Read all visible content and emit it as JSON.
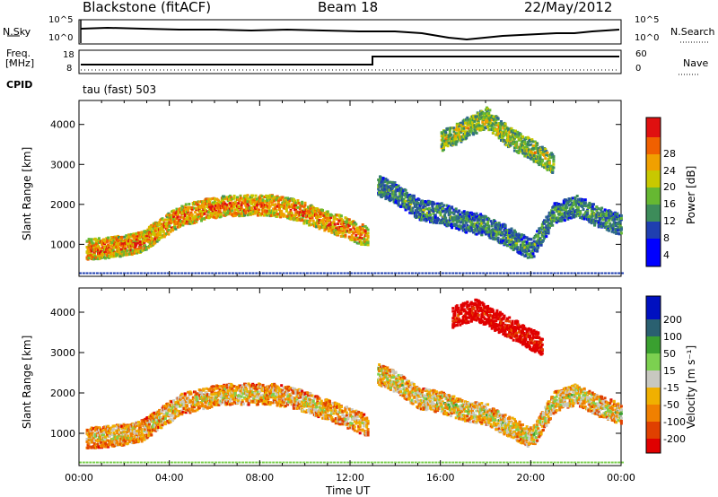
{
  "header": {
    "station": "Blackstone (fitACF)",
    "beam": "Beam 18",
    "date": "22/May/2012"
  },
  "top_panels": {
    "nsky_label": "N.Sky",
    "nsky_ticks": [
      "10^5",
      "10^0"
    ],
    "nsearch_label": "N.Search",
    "nsearch_ticks": [
      "10^5",
      "10^0"
    ],
    "freq_label": "Freq.",
    "freq_unit": "[MHz]",
    "freq_ticks": [
      "18",
      "8"
    ],
    "nave_label": "Nave",
    "nave_ticks": [
      "60",
      "0"
    ],
    "cpid_label": "CPID",
    "cpid_value": "tau (fast) 503"
  },
  "chart_data": [
    {
      "type": "heatmap",
      "name": "power-panel",
      "ylabel": "Slant Range [km]",
      "yticks": [
        1000,
        2000,
        3000,
        4000
      ],
      "ylim": [
        200,
        4600
      ],
      "xlim_hours": [
        0,
        24
      ],
      "colorbar_label": "Power [dB]",
      "colorbar_ticks": [
        "28",
        "24",
        "20",
        "16",
        "12",
        "8",
        "4"
      ],
      "colormap": [
        "#0000ff",
        "#1f3fb0",
        "#2f6a8c",
        "#3d8c5a",
        "#66b832",
        "#c8c800",
        "#f0a000",
        "#f06000",
        "#e01010"
      ],
      "bands": [
        {
          "t": [
            0.3,
            1.2,
            2.0,
            2.8,
            3.5,
            4.5,
            5.5,
            6.5,
            7.5,
            8.5,
            9.5,
            10.5,
            11.5,
            12.8
          ],
          "r": [
            900,
            950,
            1000,
            1100,
            1400,
            1750,
            1900,
            2000,
            2000,
            2000,
            1900,
            1700,
            1500,
            1200
          ],
          "level": 0.8
        },
        {
          "t": [
            13.2,
            14.0,
            15.0,
            16.0,
            17.0,
            18.0,
            19.0,
            20.0,
            21.0,
            22.0,
            23.0,
            24.0
          ],
          "r": [
            2500,
            2300,
            1900,
            1800,
            1600,
            1500,
            1200,
            900,
            1800,
            2000,
            1700,
            1500
          ],
          "level": 0.4
        },
        {
          "t": [
            16.0,
            17.0,
            18.0,
            19.0,
            20.0,
            21.0
          ],
          "r": [
            3600,
            3900,
            4200,
            3700,
            3400,
            3000
          ],
          "level": 0.6
        }
      ]
    },
    {
      "type": "heatmap",
      "name": "velocity-panel",
      "ylabel": "Slant Range [km]",
      "yticks": [
        1000,
        2000,
        3000,
        4000
      ],
      "ylim": [
        200,
        4600
      ],
      "xlim_hours": [
        0,
        24
      ],
      "xticks": [
        "00:00",
        "04:00",
        "08:00",
        "12:00",
        "16:00",
        "20:00",
        "00:00"
      ],
      "xlabel": "Time UT",
      "colorbar_label": "Velocity [m s⁻¹]",
      "colorbar_ticks": [
        "200",
        "100",
        "50",
        "15",
        "-15",
        "-50",
        "-100",
        "-200"
      ],
      "colormap": [
        "#e00000",
        "#e04000",
        "#f08000",
        "#f0b000",
        "#c8c8c0",
        "#7cd050",
        "#3aa030",
        "#2a6070",
        "#0010c0"
      ],
      "bands": [
        {
          "t": [
            0.3,
            1.2,
            2.0,
            2.8,
            3.5,
            4.5,
            5.5,
            6.5,
            7.5,
            8.5,
            9.5,
            10.5,
            11.5,
            12.8
          ],
          "r": [
            900,
            950,
            1000,
            1100,
            1400,
            1750,
            1900,
            2000,
            2000,
            2000,
            1900,
            1700,
            1500,
            1200
          ],
          "level": 0.45
        },
        {
          "t": [
            13.2,
            14.0,
            15.0,
            16.0,
            17.0,
            18.0,
            19.0,
            20.0,
            21.0,
            22.0,
            23.0,
            24.0
          ],
          "r": [
            2500,
            2300,
            1900,
            1800,
            1600,
            1500,
            1200,
            900,
            1800,
            2000,
            1700,
            1500
          ],
          "level": 0.5
        },
        {
          "t": [
            16.5,
            17.5,
            18.5,
            19.5,
            20.5
          ],
          "r": [
            3900,
            4100,
            3800,
            3500,
            3200
          ],
          "level": 0.05
        }
      ]
    }
  ]
}
